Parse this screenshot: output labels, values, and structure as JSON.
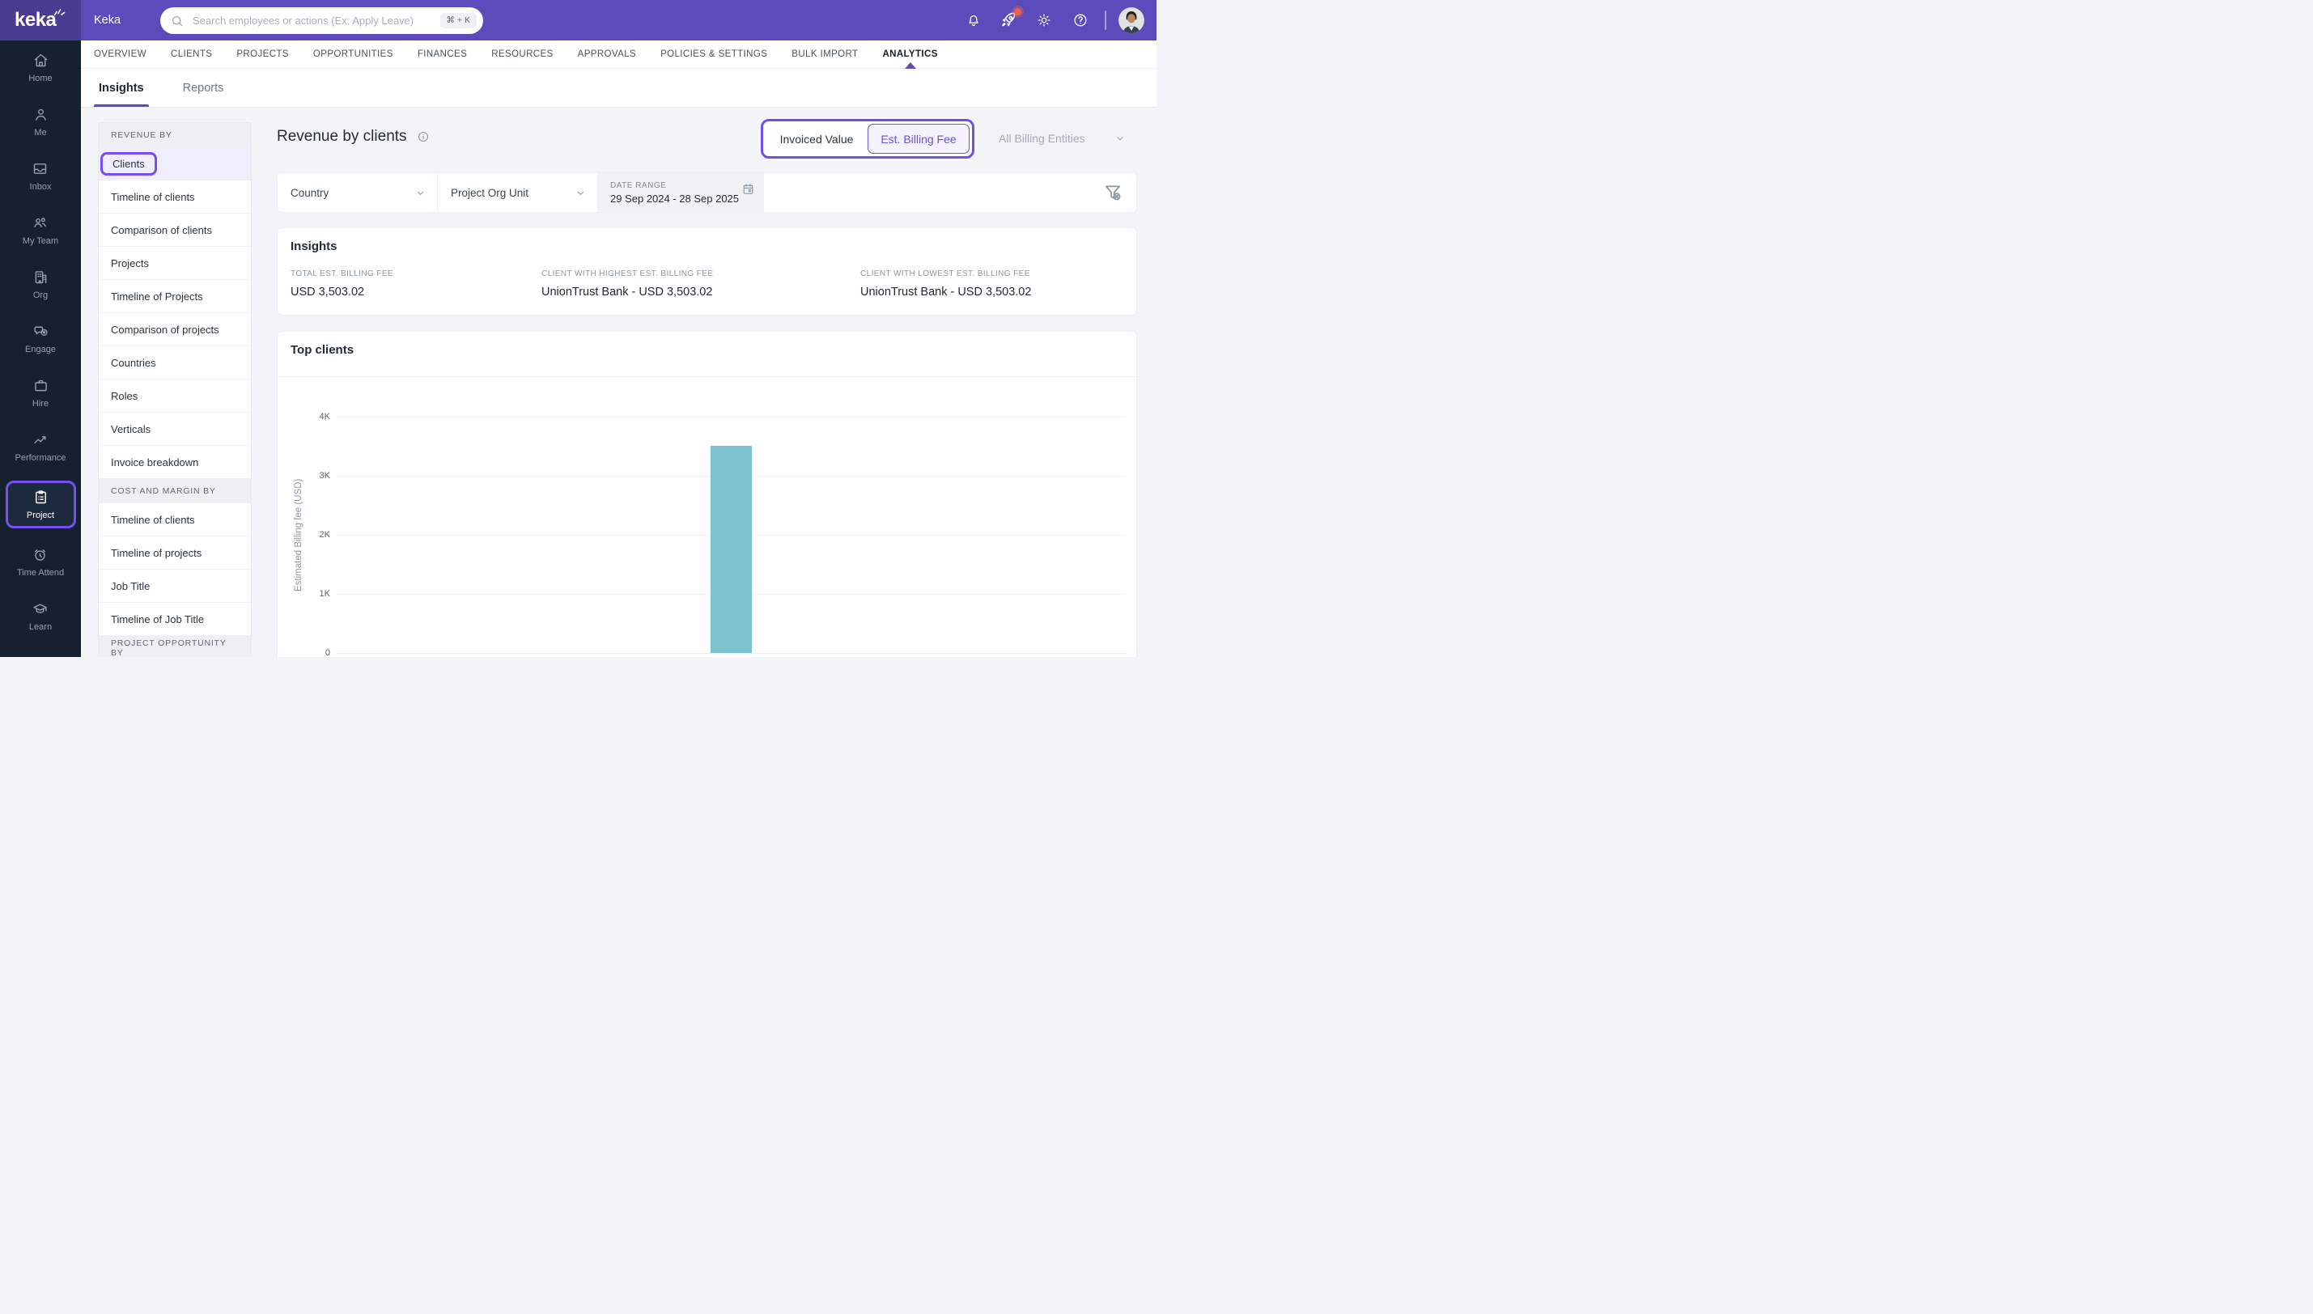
{
  "colors": {
    "header_purple": "#5b4bbb",
    "logo_purple": "#483d90",
    "sidebar_navy": "#16202e",
    "annotation_purple": "#7450f0",
    "accent_purple": "#6355d2",
    "bar_teal": "#7bc2cd",
    "badge_red": "#e8604e"
  },
  "header": {
    "logo_text": "keka",
    "workspace": "Keka",
    "search_placeholder": "Search employees or actions (Ex: Apply Leave)",
    "search_shortcut": "⌘ + K",
    "icons": {
      "search": "magnifier-icon",
      "notifications": "bell-icon",
      "whats_new": "rocket-icon-with-red-badge",
      "settings": "gear-icon",
      "help": "question-circle-icon",
      "profile": "avatar-photo"
    }
  },
  "nav": {
    "tabs": [
      {
        "label": "OVERVIEW"
      },
      {
        "label": "CLIENTS"
      },
      {
        "label": "PROJECTS"
      },
      {
        "label": "OPPORTUNITIES"
      },
      {
        "label": "FINANCES"
      },
      {
        "label": "RESOURCES"
      },
      {
        "label": "APPROVALS"
      },
      {
        "label": "POLICIES & SETTINGS"
      },
      {
        "label": "BULK IMPORT"
      },
      {
        "label": "ANALYTICS",
        "active": true
      }
    ],
    "subtabs": [
      {
        "label": "Insights",
        "active": true
      },
      {
        "label": "Reports"
      }
    ]
  },
  "sidebar": {
    "items": [
      {
        "label": "Home",
        "icon": "home"
      },
      {
        "label": "Me",
        "icon": "me"
      },
      {
        "label": "Inbox",
        "icon": "inbox"
      },
      {
        "label": "My Team",
        "icon": "team"
      },
      {
        "label": "Org",
        "icon": "org"
      },
      {
        "label": "Engage",
        "icon": "engage"
      },
      {
        "label": "Hire",
        "icon": "hire"
      },
      {
        "label": "Performance",
        "icon": "performance"
      },
      {
        "label": "Project",
        "icon": "project",
        "active": true
      },
      {
        "label": "Time Attend",
        "icon": "time"
      },
      {
        "label": "Learn",
        "icon": "learn"
      }
    ]
  },
  "panel": {
    "rows": [
      {
        "kind": "section",
        "label": "REVENUE BY"
      },
      {
        "kind": "item",
        "label": "Clients",
        "selected": true
      },
      {
        "kind": "item",
        "label": "Timeline of clients"
      },
      {
        "kind": "item",
        "label": "Comparison of clients"
      },
      {
        "kind": "item",
        "label": "Projects"
      },
      {
        "kind": "item",
        "label": "Timeline of Projects"
      },
      {
        "kind": "item",
        "label": "Comparison of projects"
      },
      {
        "kind": "item",
        "label": "Countries"
      },
      {
        "kind": "item",
        "label": "Roles"
      },
      {
        "kind": "item",
        "label": "Verticals"
      },
      {
        "kind": "item",
        "label": "Invoice breakdown"
      },
      {
        "kind": "section",
        "label": "COST AND MARGIN BY"
      },
      {
        "kind": "item",
        "label": "Timeline of clients"
      },
      {
        "kind": "item",
        "label": "Timeline of projects"
      },
      {
        "kind": "item",
        "label": "Job Title"
      },
      {
        "kind": "item",
        "label": "Timeline of Job Title"
      },
      {
        "kind": "section",
        "label": "PROJECT OPPORTUNITY BY"
      }
    ]
  },
  "main": {
    "title": "Revenue by clients",
    "toggle": [
      {
        "label": "Invoiced Value"
      },
      {
        "label": "Est. Billing Fee",
        "selected": true
      }
    ],
    "billing_entities": "All Billing Entities",
    "filters": {
      "country": "Country",
      "org_unit": "Project Org Unit",
      "date_range_label": "DATE RANGE",
      "date_range_value": "29 Sep 2024 - 28 Sep 2025"
    },
    "insights": {
      "title": "Insights",
      "stats": [
        {
          "label": "TOTAL EST. BILLING FEE",
          "value": "USD 3,503.02"
        },
        {
          "label": "CLIENT WITH HIGHEST EST. BILLING FEE",
          "value": "UnionTrust Bank - USD 3,503.02"
        },
        {
          "label": "CLIENT WITH LOWEST EST. BILLING FEE",
          "value": "UnionTrust Bank - USD 3,503.02"
        }
      ]
    }
  },
  "chart_data": {
    "type": "bar",
    "title": "Top clients",
    "categories": [
      "UnionTrust Bank"
    ],
    "values": [
      3503.02
    ],
    "xlabel": "",
    "ylabel": "Estimated Billing fee (USD)",
    "ylim": [
      0,
      4000
    ],
    "yticks": [
      "4K",
      "3K",
      "2K",
      "1K",
      "0"
    ],
    "grid": true,
    "legend": false,
    "bar_color": "#7bc2cd"
  }
}
